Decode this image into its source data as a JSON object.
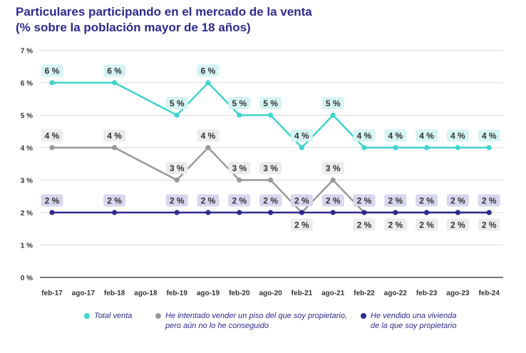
{
  "title_line1": "Particulares participando en el mercado de la venta",
  "title_line2": "(% sobre la población mayor de 18 años)",
  "colors": {
    "total": "#40d4cc",
    "intentado": "#999999",
    "vendido": "#2e2a8f",
    "label_total_bg": "#d5f4f3",
    "label_intentado_bg": "#ececec",
    "label_vendido_bg": "#d7d7ef",
    "title": "#2e2a8f"
  },
  "legend": {
    "total": "Total venta",
    "intentado_line1": "He intentado vender un piso del que soy propietario,",
    "intentado_line2": "pero aún no lo he conseguido",
    "vendido_line1": "He vendido una vivienda",
    "vendido_line2": "de la que soy propietario"
  },
  "chart_data": {
    "type": "line",
    "title": "Particulares participando en el mercado de la venta (% sobre la población mayor de 18 años)",
    "categories": [
      "feb-17",
      "ago-17",
      "feb-18",
      "ago-18",
      "feb-19",
      "ago-19",
      "feb-20",
      "ago-20",
      "feb-21",
      "ago-21",
      "feb-22",
      "ago-22",
      "feb-23",
      "ago-23",
      "feb-24"
    ],
    "y_ticks": [
      "0 %",
      "1 %",
      "2 %",
      "3 %",
      "4 %",
      "5 %",
      "6 %",
      "7 %"
    ],
    "ylim": [
      0,
      7
    ],
    "grid": true,
    "legend_position": "bottom",
    "series": [
      {
        "name": "Total venta",
        "points": [
          {
            "x": "feb-17",
            "y": 6,
            "label": "6 %"
          },
          {
            "x": "feb-18",
            "y": 6,
            "label": "6 %"
          },
          {
            "x": "feb-19",
            "y": 5,
            "label": "5 %"
          },
          {
            "x": "ago-19",
            "y": 6,
            "label": "6 %"
          },
          {
            "x": "feb-20",
            "y": 5,
            "label": "5 %"
          },
          {
            "x": "ago-20",
            "y": 5,
            "label": "5 %"
          },
          {
            "x": "feb-21",
            "y": 4,
            "label": "4 %"
          },
          {
            "x": "ago-21",
            "y": 5,
            "label": "5 %"
          },
          {
            "x": "feb-22",
            "y": 4,
            "label": "4 %"
          },
          {
            "x": "ago-22",
            "y": 4,
            "label": "4 %"
          },
          {
            "x": "feb-23",
            "y": 4,
            "label": "4 %"
          },
          {
            "x": "ago-23",
            "y": 4,
            "label": "4 %"
          },
          {
            "x": "feb-24",
            "y": 4,
            "label": "4 %"
          }
        ]
      },
      {
        "name": "He intentado vender un piso del que soy propietario, pero aún no lo he conseguido",
        "points": [
          {
            "x": "feb-17",
            "y": 4,
            "label": "4 %"
          },
          {
            "x": "feb-18",
            "y": 4,
            "label": "4 %"
          },
          {
            "x": "feb-19",
            "y": 3,
            "label": "3 %"
          },
          {
            "x": "ago-19",
            "y": 4,
            "label": "4 %"
          },
          {
            "x": "feb-20",
            "y": 3,
            "label": "3 %"
          },
          {
            "x": "ago-20",
            "y": 3,
            "label": "3 %"
          },
          {
            "x": "feb-21",
            "y": 2,
            "label": "2 %"
          },
          {
            "x": "ago-21",
            "y": 3,
            "label": "3 %"
          },
          {
            "x": "feb-22",
            "y": 2,
            "label": "2 %"
          },
          {
            "x": "ago-22",
            "y": 2,
            "label": "2 %"
          },
          {
            "x": "feb-23",
            "y": 2,
            "label": "2 %"
          },
          {
            "x": "ago-23",
            "y": 2,
            "label": "2 %"
          },
          {
            "x": "feb-24",
            "y": 2,
            "label": "2 %"
          }
        ]
      },
      {
        "name": "He vendido una vivienda de la que soy propietario",
        "points": [
          {
            "x": "feb-17",
            "y": 2,
            "label": "2 %"
          },
          {
            "x": "feb-18",
            "y": 2,
            "label": "2 %"
          },
          {
            "x": "feb-19",
            "y": 2,
            "label": "2 %"
          },
          {
            "x": "ago-19",
            "y": 2,
            "label": "2 %"
          },
          {
            "x": "feb-20",
            "y": 2,
            "label": "2 %"
          },
          {
            "x": "ago-20",
            "y": 2,
            "label": "2 %"
          },
          {
            "x": "feb-21",
            "y": 2,
            "label": "2 %"
          },
          {
            "x": "ago-21",
            "y": 2,
            "label": "2 %"
          },
          {
            "x": "feb-22",
            "y": 2,
            "label": "2 %"
          },
          {
            "x": "ago-22",
            "y": 2,
            "label": "2 %"
          },
          {
            "x": "feb-23",
            "y": 2,
            "label": "2 %"
          },
          {
            "x": "ago-23",
            "y": 2,
            "label": "2 %"
          },
          {
            "x": "feb-24",
            "y": 2,
            "label": "2 %"
          }
        ]
      }
    ]
  }
}
